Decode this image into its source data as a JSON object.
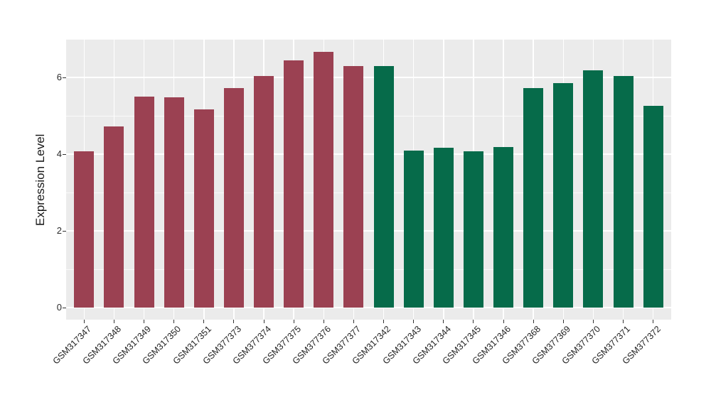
{
  "figure": {
    "background": "#FFFFFF",
    "panel_background": "#EBEBEB",
    "gridline_color": "#FFFFFF",
    "tick_mark_color": "#333333",
    "axis_text_color": "#1F1F1F"
  },
  "chart_data": {
    "type": "bar",
    "title": "",
    "xlabel": "",
    "ylabel": "Expression Level",
    "categories": [
      "GSM317347",
      "GSM317348",
      "GSM317349",
      "GSM317350",
      "GSM317351",
      "GSM377373",
      "GSM377374",
      "GSM377375",
      "GSM377376",
      "GSM377377",
      "GSM317342",
      "GSM317343",
      "GSM317344",
      "GSM317345",
      "GSM317346",
      "GSM377368",
      "GSM377369",
      "GSM377370",
      "GSM377371",
      "GSM377372"
    ],
    "values": [
      4.08,
      4.72,
      5.5,
      5.48,
      5.17,
      5.72,
      6.03,
      6.45,
      6.66,
      6.3,
      6.3,
      4.09,
      4.17,
      4.08,
      4.19,
      5.73,
      5.86,
      6.19,
      6.04,
      5.26
    ],
    "bar_color_groups": [
      {
        "label": "maroon-group",
        "color": "#9B4152",
        "start_index": 0,
        "end_index": 9
      },
      {
        "label": "green-group",
        "color": "#066B4A",
        "start_index": 10,
        "end_index": 19
      }
    ],
    "y_ticks": [
      0,
      2,
      4,
      6
    ],
    "y_minor_ticks": [
      1,
      3,
      5,
      7
    ],
    "ylim": [
      -0.34,
      7.01
    ],
    "x_tick_angle_deg": 45,
    "grid": true,
    "legend": "none"
  }
}
